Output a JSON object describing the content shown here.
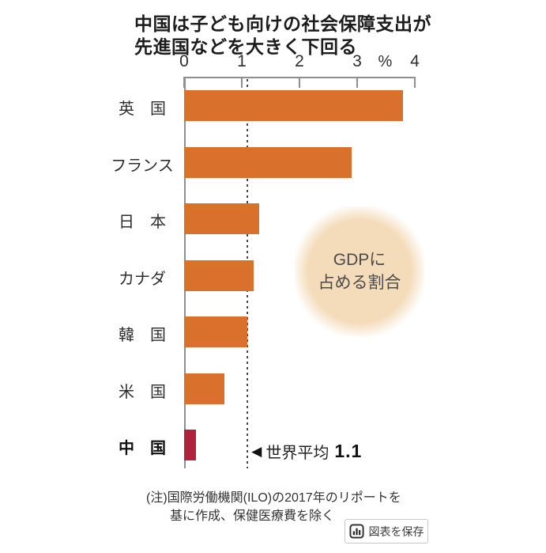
{
  "title": {
    "line1": "中国は子ども向けの社会保障支出が",
    "line2": "先進国などを大きく下回る"
  },
  "chart_data": {
    "type": "bar",
    "orientation": "horizontal",
    "categories": [
      "英国",
      "フランス",
      "日本",
      "カナダ",
      "韓国",
      "米国",
      "中国"
    ],
    "display_labels": [
      "英　国",
      "フランス",
      "日　本",
      "カナダ",
      "韓　国",
      "米　国",
      "中　国"
    ],
    "values": [
      3.8,
      2.9,
      1.3,
      1.2,
      1.1,
      0.7,
      0.2
    ],
    "xlim": [
      0,
      4
    ],
    "x_ticks": [
      "0",
      "1",
      "2",
      "3",
      "4"
    ],
    "unit_label": "%",
    "bar_color": "#d9702b",
    "highlight_index": 6,
    "highlight_color": "#b1233c",
    "reference_line": {
      "value": 1.1,
      "marker": "◀",
      "label": "世界平均",
      "value_text": "1.1"
    },
    "annotation": {
      "line1": "GDPに",
      "line2": "占める割合",
      "bg_color": "#f4dcba"
    }
  },
  "note": {
    "line1": "(注)国際労働機関(ILO)の2017年のリポートを",
    "line2": "基に作成、保健医療費を除く"
  },
  "save_button": {
    "label": "図表を保存",
    "icon": "bar-chart-icon"
  }
}
